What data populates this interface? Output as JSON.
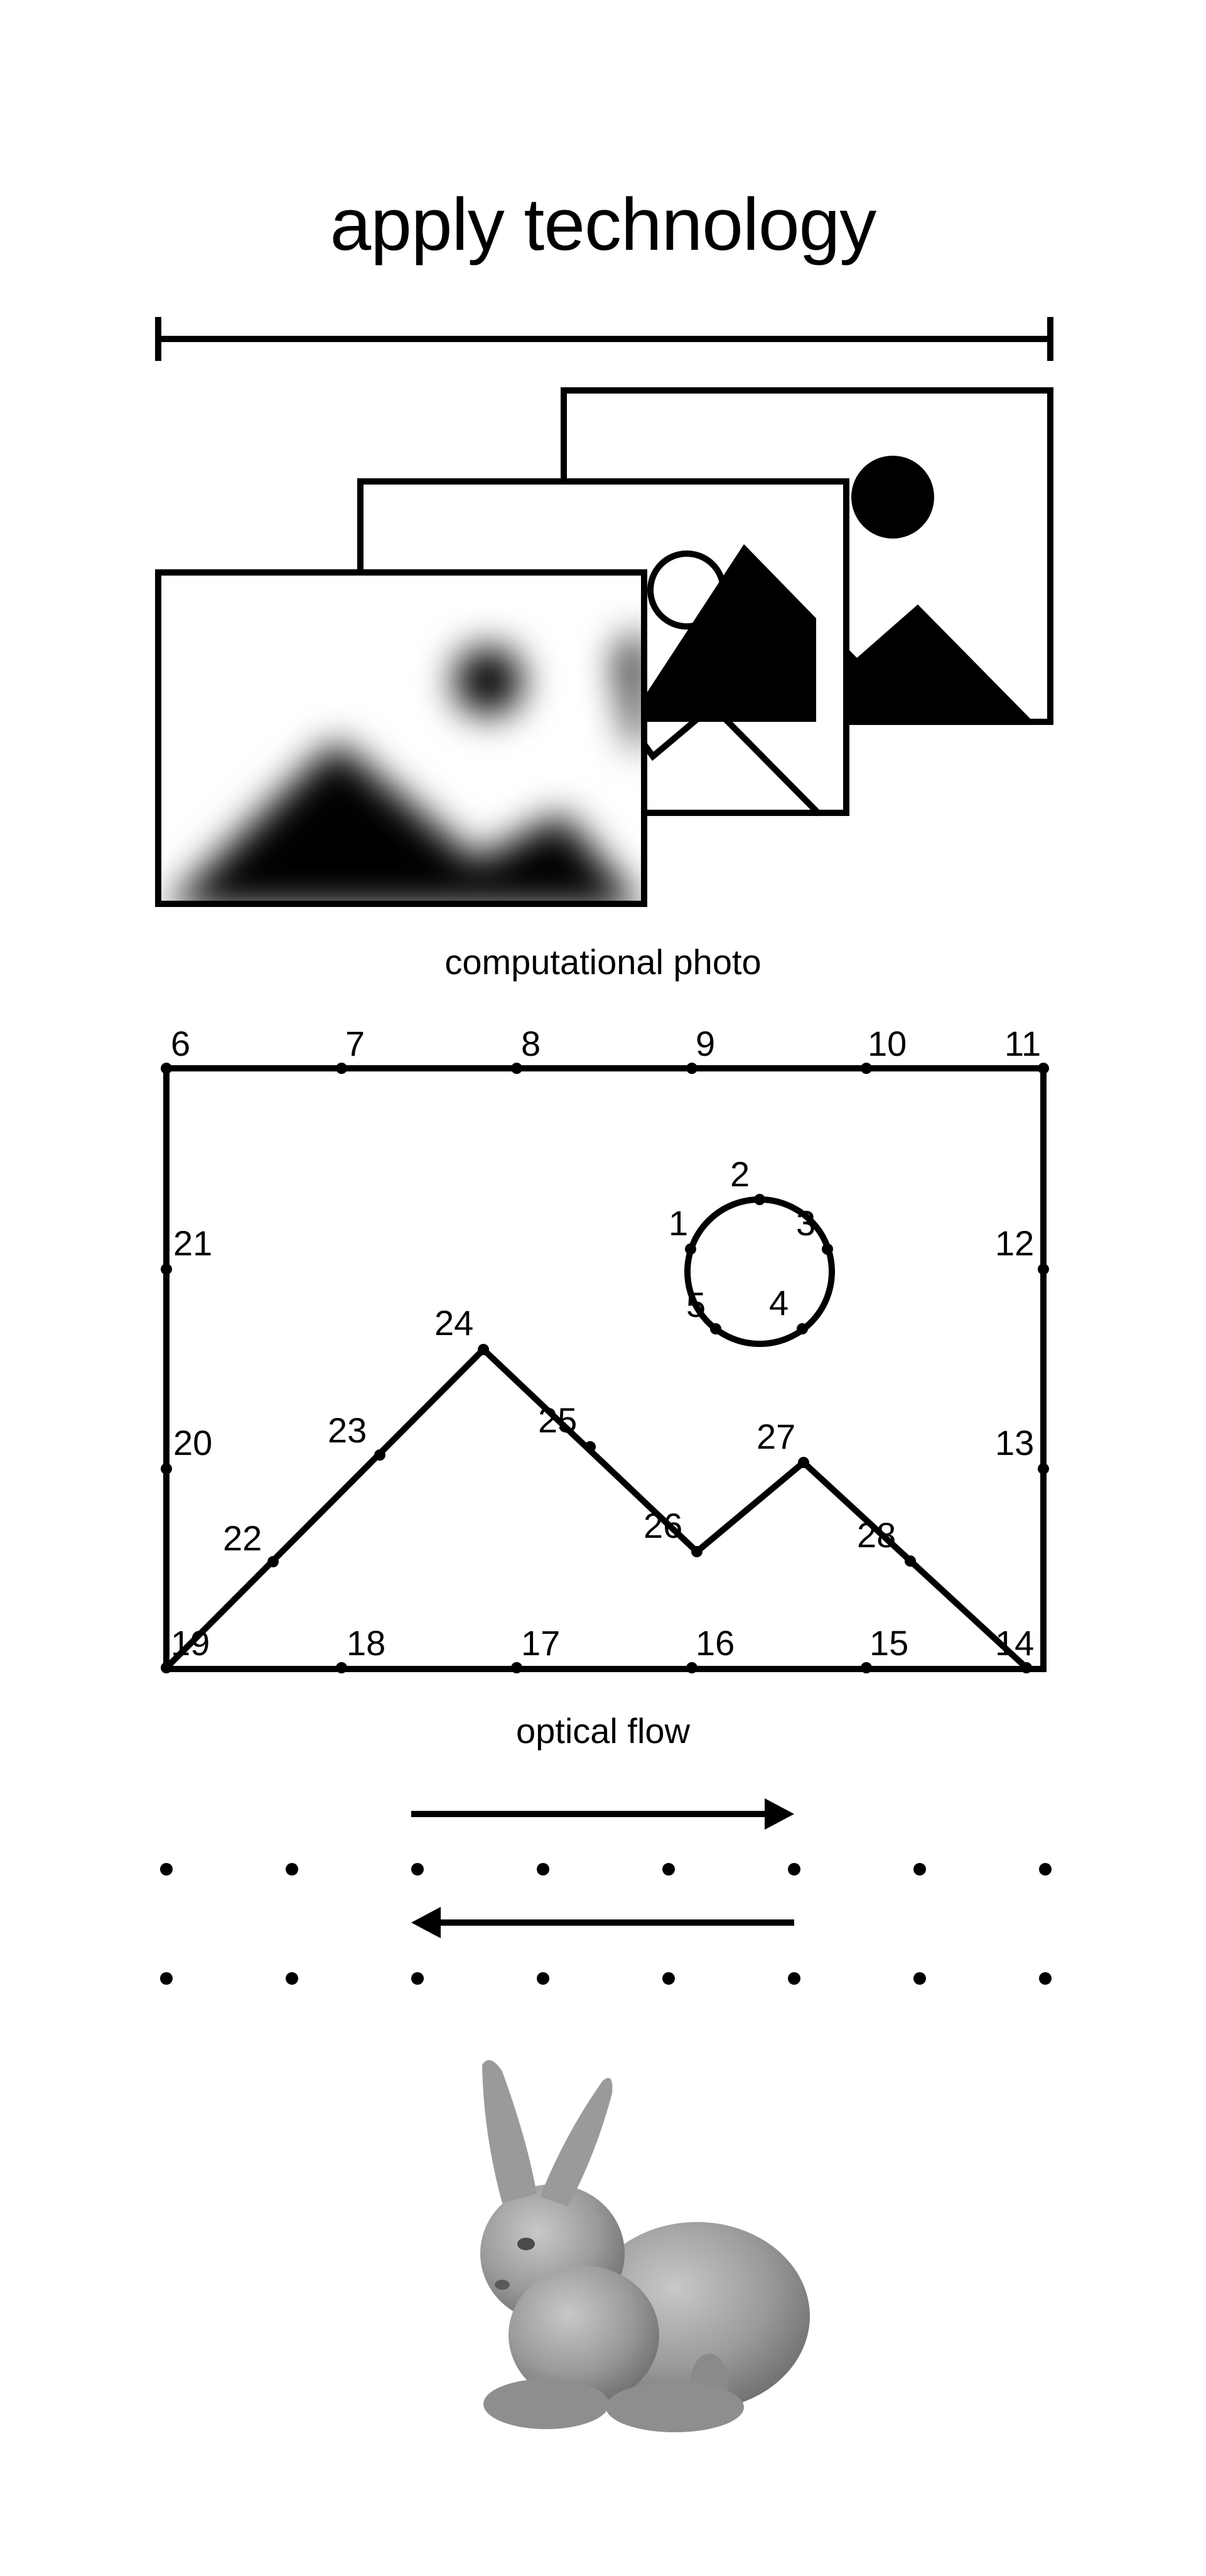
{
  "title": "apply technology",
  "section_labels": {
    "photo": "computational photo",
    "flow": "optical flow"
  },
  "point_labels": [
    "1",
    "2",
    "3",
    "4",
    "5",
    "6",
    "7",
    "8",
    "9",
    "10",
    "11",
    "12",
    "13",
    "14",
    "15",
    "16",
    "17",
    "18",
    "19",
    "20",
    "21",
    "22",
    "23",
    "24",
    "25",
    "26",
    "27",
    "28"
  ],
  "colors": {
    "ink": "#000000",
    "background": "#ffffff",
    "bunny": "#9a9a9a"
  },
  "icons": [
    "image-frame-icon",
    "sun-icon",
    "mountain-icon",
    "arrow-right-icon",
    "arrow-left-icon",
    "bunny-icon"
  ]
}
